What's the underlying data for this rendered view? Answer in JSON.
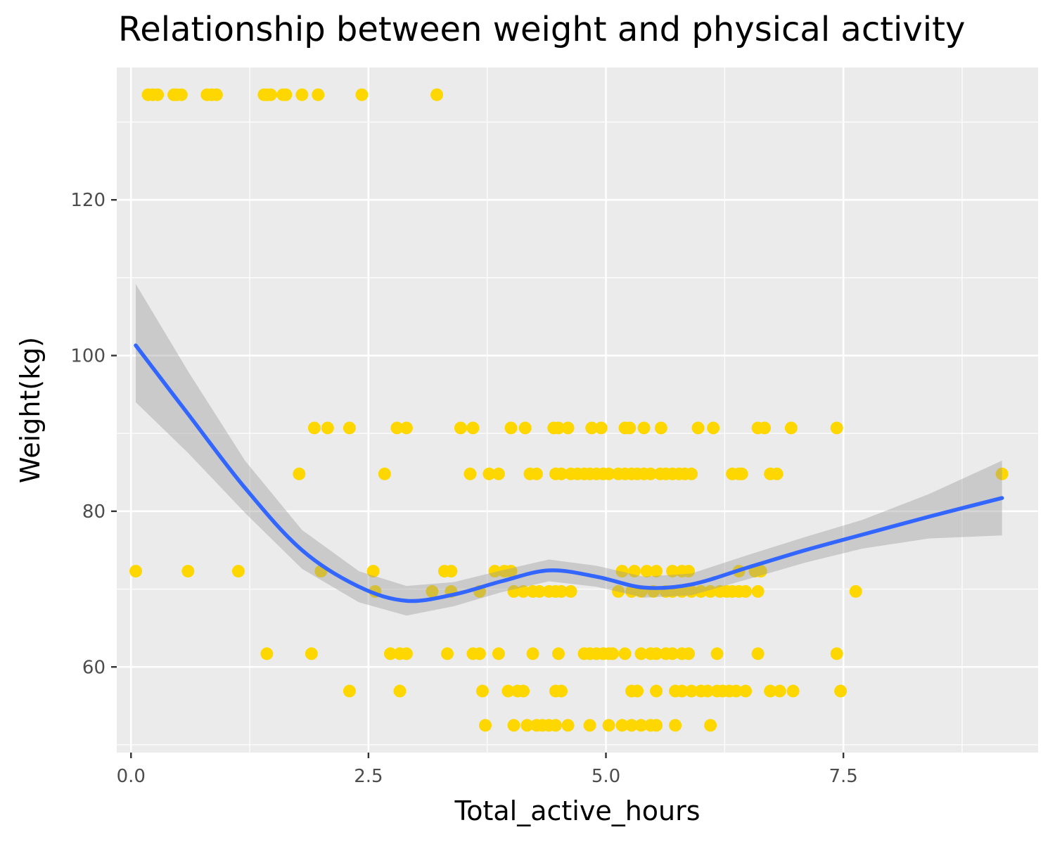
{
  "chart_data": {
    "type": "scatter",
    "title": "Relationship between weight and physical activity",
    "xlabel": "Total_active_hours",
    "ylabel": "Weight(kg)",
    "xlim": [
      -0.15,
      9.55
    ],
    "ylim": [
      49,
      137
    ],
    "x_ticks": [
      0.0,
      2.5,
      5.0,
      7.5
    ],
    "x_tick_labels": [
      "0.0",
      "2.5",
      "5.0",
      "7.5"
    ],
    "y_ticks": [
      60,
      80,
      100,
      120
    ],
    "y_tick_labels": [
      "60",
      "80",
      "100",
      "120"
    ],
    "grid": true,
    "point_color": "#FFD700",
    "smooth_color": "#3366FF",
    "ribbon_color": "#999999",
    "panel_color": "#EBEBEB",
    "groups": [
      {
        "y": 133.5,
        "x": [
          0.18,
          0.23,
          0.28,
          0.45,
          0.48,
          0.53,
          0.8,
          0.85,
          0.9,
          1.4,
          1.43,
          1.47,
          1.6,
          1.63,
          1.8,
          1.97,
          2.43,
          3.22
        ]
      },
      {
        "y": 90.7,
        "x": [
          1.93,
          2.07,
          2.3,
          2.8,
          2.9,
          3.47,
          3.6,
          4.0,
          4.15,
          4.45,
          4.5,
          4.6,
          4.85,
          4.95,
          5.2,
          5.25,
          5.4,
          5.58,
          5.97,
          6.13,
          6.6,
          6.67,
          6.95,
          7.43
        ]
      },
      {
        "y": 84.8,
        "x": [
          1.77,
          2.67,
          3.57,
          3.77,
          3.87,
          4.2,
          4.27,
          4.47,
          4.53,
          4.63,
          4.7,
          4.77,
          4.83,
          4.9,
          4.97,
          5.03,
          5.13,
          5.2,
          5.27,
          5.33,
          5.4,
          5.47,
          5.57,
          5.63,
          5.7,
          5.77,
          5.83,
          5.9,
          6.33,
          6.4,
          6.43,
          6.73,
          6.8,
          9.17
        ]
      },
      {
        "y": 72.3,
        "x": [
          0.05,
          0.6,
          1.13,
          2.0,
          2.55,
          3.3,
          3.37,
          3.83,
          3.93,
          4.0,
          5.17,
          5.3,
          5.43,
          5.53,
          5.7,
          5.8,
          5.87,
          6.4,
          6.57,
          6.63
        ]
      },
      {
        "y": 69.7,
        "x": [
          2.57,
          3.17,
          3.37,
          3.67,
          4.03,
          4.13,
          4.23,
          4.3,
          4.4,
          4.47,
          4.53,
          4.63,
          5.13,
          5.27,
          5.37,
          5.5,
          5.63,
          5.7,
          5.8,
          5.9,
          6.0,
          6.1,
          6.2,
          6.27,
          6.33,
          6.4,
          6.47,
          6.6,
          7.63
        ]
      },
      {
        "y": 61.7,
        "x": [
          1.43,
          1.9,
          2.73,
          2.83,
          2.9,
          3.33,
          3.6,
          3.67,
          3.87,
          4.23,
          4.5,
          4.77,
          4.83,
          4.9,
          4.97,
          5.03,
          5.07,
          5.2,
          5.37,
          5.47,
          5.53,
          5.63,
          5.7,
          5.8,
          5.87,
          6.17,
          6.6,
          7.43
        ]
      },
      {
        "y": 56.9,
        "x": [
          2.3,
          2.83,
          3.7,
          3.97,
          4.07,
          4.13,
          4.47,
          4.53,
          5.27,
          5.33,
          5.53,
          5.73,
          5.8,
          5.9,
          6.0,
          6.07,
          6.17,
          6.23,
          6.3,
          6.37,
          6.47,
          6.73,
          6.83,
          6.97,
          7.47
        ]
      },
      {
        "y": 52.5,
        "x": [
          3.73,
          4.03,
          4.17,
          4.27,
          4.33,
          4.4,
          4.47,
          4.6,
          4.83,
          5.03,
          5.17,
          5.27,
          5.37,
          5.47,
          5.53,
          5.73,
          6.1
        ]
      }
    ],
    "smooth_fit": [
      {
        "x": 0.05,
        "y": 101.3,
        "lo": 94.0,
        "hi": 109.2
      },
      {
        "x": 0.6,
        "y": 92.5,
        "lo": 87.5,
        "hi": 98.0
      },
      {
        "x": 1.2,
        "y": 83.0,
        "lo": 79.8,
        "hi": 86.5
      },
      {
        "x": 1.8,
        "y": 75.0,
        "lo": 72.6,
        "hi": 77.6
      },
      {
        "x": 2.4,
        "y": 70.3,
        "lo": 68.3,
        "hi": 72.3
      },
      {
        "x": 2.9,
        "y": 68.5,
        "lo": 66.6,
        "hi": 70.4
      },
      {
        "x": 3.4,
        "y": 69.3,
        "lo": 67.8,
        "hi": 70.9
      },
      {
        "x": 3.9,
        "y": 71.0,
        "lo": 69.6,
        "hi": 72.4
      },
      {
        "x": 4.4,
        "y": 72.4,
        "lo": 71.0,
        "hi": 73.8
      },
      {
        "x": 4.9,
        "y": 71.6,
        "lo": 70.3,
        "hi": 73.0
      },
      {
        "x": 5.4,
        "y": 70.2,
        "lo": 68.9,
        "hi": 71.6
      },
      {
        "x": 5.9,
        "y": 70.6,
        "lo": 69.2,
        "hi": 72.0
      },
      {
        "x": 6.5,
        "y": 72.8,
        "lo": 71.3,
        "hi": 74.4
      },
      {
        "x": 7.1,
        "y": 75.0,
        "lo": 73.4,
        "hi": 76.7
      },
      {
        "x": 7.7,
        "y": 77.0,
        "lo": 75.2,
        "hi": 78.9
      },
      {
        "x": 8.4,
        "y": 79.3,
        "lo": 76.5,
        "hi": 82.2
      },
      {
        "x": 9.17,
        "y": 81.7,
        "lo": 76.9,
        "hi": 86.5
      }
    ]
  }
}
